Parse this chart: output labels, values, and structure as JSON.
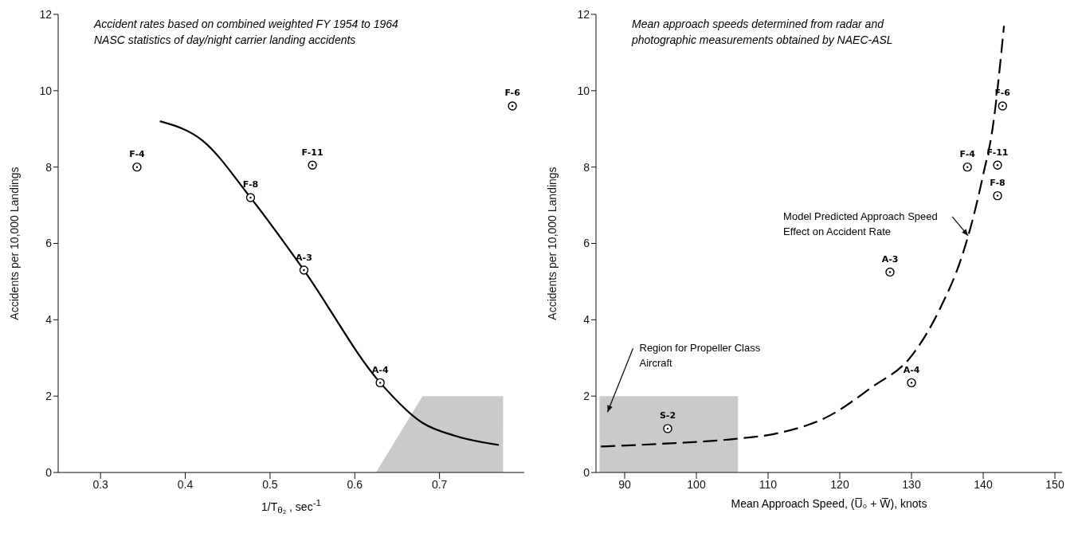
{
  "chart_data": [
    {
      "type": "scatter",
      "annotations": [
        "Accident rates based on combined weighted FY 1954 to 1964 NASC statistics of day/night carrier landing accidents"
      ],
      "xlabel": "1/T$_{θ₂}$ , sec$^{-1}$",
      "ylabel": "Accidents per 10,000 Landings",
      "xlim": [
        0.25,
        0.8
      ],
      "xticks": [
        0.3,
        0.4,
        0.5,
        0.6,
        0.7
      ],
      "ylim": [
        0,
        12
      ],
      "yticks": [
        0,
        2,
        4,
        6,
        8,
        10,
        12
      ],
      "series": [
        {
          "type": "area",
          "color": "#c4c4c4",
          "x": [
            0.625,
            0.68,
            0.775
          ],
          "values": [
            0,
            2,
            2
          ]
        },
        {
          "type": "line",
          "color": "#000000",
          "line_style": "solid",
          "x": [
            0.37,
            0.42,
            0.477,
            0.54,
            0.63,
            0.68,
            0.72,
            0.77
          ],
          "values": [
            9.2,
            8.7,
            7.2,
            5.3,
            2.35,
            1.3,
            0.95,
            0.72
          ]
        },
        {
          "marker": "circle",
          "color": "#000000",
          "x": [
            0.343,
            0.477,
            0.55,
            0.54,
            0.63,
            0.786
          ],
          "values": [
            8.0,
            7.2,
            8.05,
            5.3,
            2.35,
            9.6
          ],
          "value_labels": [
            "F-4",
            "F-8",
            "F-11",
            "A-3",
            "A-4",
            "F-6"
          ]
        }
      ]
    },
    {
      "type": "scatter",
      "annotations": [
        "Mean approach speeds determined from radar and photographic measurements obtained by NAEC-ASL",
        "Region for Propeller Class Aircraft",
        {
          "text": "Model Predicted Approach Speed Effect on Accident Rate",
          "x": 137.9,
          "y": 6.2
        }
      ],
      "xlabel": "Mean Approach Speed, (U̅₀ + W̅), knots",
      "ylabel": "Accidents per 10,000 Landings",
      "xlim": [
        86,
        151
      ],
      "xticks": [
        90,
        100,
        110,
        120,
        130,
        140,
        150
      ],
      "ylim": [
        0,
        12
      ],
      "yticks": [
        0,
        2,
        4,
        6,
        8,
        10,
        12
      ],
      "series": [
        {
          "type": "area",
          "color": "#c4c4c4",
          "x": [
            86.5,
            105.8
          ],
          "values": [
            2,
            2
          ]
        },
        {
          "type": "line",
          "color": "#000000",
          "line_style": "dashed",
          "x": [
            86.7,
            95,
            105.4,
            111.4,
            118.7,
            124.2,
            130.2,
            134,
            137.1,
            138.5,
            140,
            141.3,
            142.9
          ],
          "values": [
            0.68,
            0.75,
            0.88,
            1.03,
            1.5,
            2.2,
            3.1,
            4.3,
            5.7,
            6.6,
            7.8,
            9.0,
            11.7
          ]
        },
        {
          "marker": "circle",
          "color": "#000000",
          "x": [
            96,
            127,
            130,
            137.8,
            142,
            142,
            142.7
          ],
          "values": [
            1.15,
            5.25,
            2.35,
            8.0,
            8.05,
            7.25,
            9.6
          ],
          "value_labels": [
            "S-2",
            "A-3",
            "A-4",
            "F-4",
            "F-11",
            "F-8",
            "F-6"
          ]
        }
      ]
    }
  ]
}
